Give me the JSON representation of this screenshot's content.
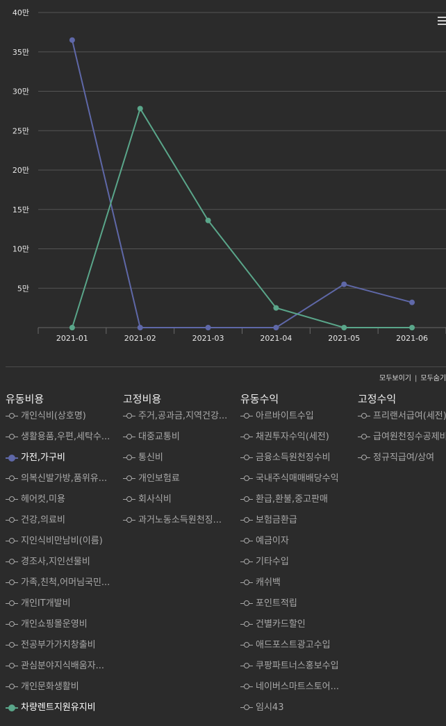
{
  "chart_data": {
    "type": "line",
    "categories": [
      "2021-01",
      "2021-02",
      "2021-03",
      "2021-04",
      "2021-05",
      "2021-06"
    ],
    "y_ticks": [
      "5만",
      "10만",
      "15만",
      "20만",
      "25만",
      "30만",
      "35만",
      "40만"
    ],
    "ylim": [
      0,
      400000
    ],
    "grid": true,
    "series": [
      {
        "name": "가전,가구비",
        "color": "#5f68a8",
        "values": [
          365000,
          0,
          0,
          0,
          55000,
          32000
        ]
      },
      {
        "name": "차량렌트지원유지비",
        "color": "#5aa68a",
        "values": [
          0,
          278000,
          136000,
          25000,
          0,
          0
        ]
      }
    ]
  },
  "toggles": {
    "show_all": "모두보이기",
    "separator": "|",
    "hide_all": "모두숨기"
  },
  "legend": [
    {
      "title": "유동비용",
      "items": [
        {
          "label": "개인식비(상호명)"
        },
        {
          "label": "생활용품,우편,세탁수..."
        },
        {
          "label": "가전,가구비",
          "on": true,
          "color": "#5f68a8"
        },
        {
          "label": "의복신발가방,품위유..."
        },
        {
          "label": "헤어컷,미용"
        },
        {
          "label": "건강,의료비"
        },
        {
          "label": "지인식비만남비(이름)"
        },
        {
          "label": "경조사,지인선물비"
        },
        {
          "label": "가족,친척,어머님국민..."
        },
        {
          "label": "개인IT개발비"
        },
        {
          "label": "개인쇼핑몰운영비"
        },
        {
          "label": "전공부가가치창출비"
        },
        {
          "label": "관심분야지식배움자..."
        },
        {
          "label": "개인문화생활비"
        },
        {
          "label": "차량렌트지원유지비",
          "on": true,
          "color": "#5aa68a"
        }
      ]
    },
    {
      "title": "고정비용",
      "items": [
        {
          "label": "주거,공과금,지역건강..."
        },
        {
          "label": "대중교통비"
        },
        {
          "label": "통신비"
        },
        {
          "label": "개인보험료"
        },
        {
          "label": "회사식비"
        },
        {
          "label": "과거노동소득원천징..."
        }
      ]
    },
    {
      "title": "유동수익",
      "items": [
        {
          "label": "아르바이트수입"
        },
        {
          "label": "채권투자수익(세전)"
        },
        {
          "label": "금융소득원천징수비"
        },
        {
          "label": "국내주식매매배당수익"
        },
        {
          "label": "환급,환불,중고판매"
        },
        {
          "label": "보험금환급"
        },
        {
          "label": "예금이자"
        },
        {
          "label": "기타수입"
        },
        {
          "label": "캐쉬백"
        },
        {
          "label": "포인트적립"
        },
        {
          "label": "건별카드할인"
        },
        {
          "label": "애드포스트광고수입"
        },
        {
          "label": "쿠팡파트너스홍보수입"
        },
        {
          "label": "네이버스마트스토어..."
        },
        {
          "label": "임시43"
        }
      ]
    },
    {
      "title": "고정수익",
      "items": [
        {
          "label": "프리랜서급여(세전)"
        },
        {
          "label": "급여원천징수공제비"
        },
        {
          "label": "정규직급여/상여"
        }
      ]
    }
  ]
}
